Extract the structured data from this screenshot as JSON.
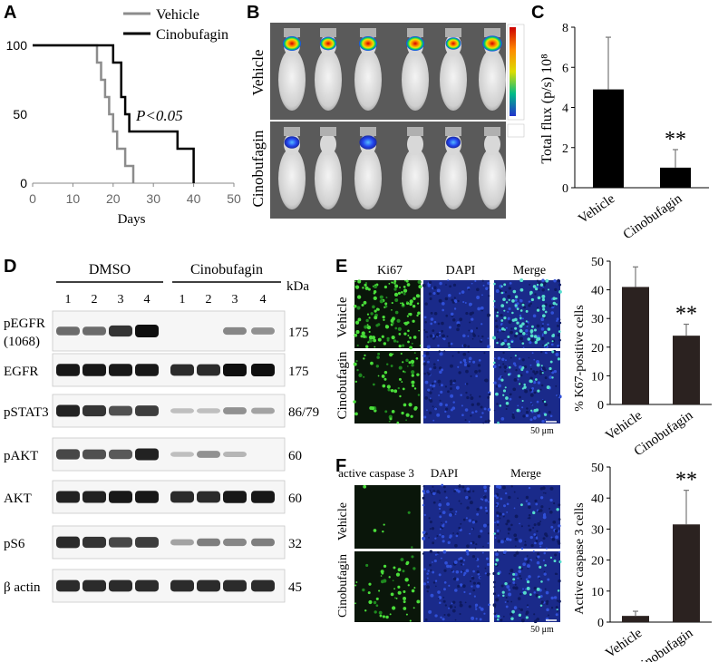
{
  "panels": {
    "a": "A",
    "b": "B",
    "c": "C",
    "d": "D",
    "e": "E",
    "f": "F"
  },
  "chart_data": [
    {
      "panel": "A",
      "type": "line",
      "subtype": "kaplan-meier step",
      "xlabel": "Days",
      "ylabel": "",
      "xlim": [
        0,
        50
      ],
      "ylim": [
        0,
        100
      ],
      "xticks": [
        "0",
        "10",
        "20",
        "30",
        "40",
        "50"
      ],
      "yticks": [
        "0",
        "50",
        "100"
      ],
      "legend_position": "top-right",
      "annotation": "P<0.05",
      "series": [
        {
          "name": "Vehicle",
          "color": "#8c8c8c",
          "points": [
            [
              0,
              100
            ],
            [
              16,
              100
            ],
            [
              16,
              87.5
            ],
            [
              17,
              87.5
            ],
            [
              17,
              75
            ],
            [
              18,
              75
            ],
            [
              18,
              62.5
            ],
            [
              19,
              62.5
            ],
            [
              19,
              50
            ],
            [
              20,
              50
            ],
            [
              20,
              37.5
            ],
            [
              21,
              37.5
            ],
            [
              21,
              25
            ],
            [
              23,
              25
            ],
            [
              23,
              12.5
            ],
            [
              25,
              12.5
            ],
            [
              25,
              0
            ]
          ]
        },
        {
          "name": "Cinobufagin",
          "color": "#000000",
          "points": [
            [
              0,
              100
            ],
            [
              20,
              100
            ],
            [
              20,
              87.5
            ],
            [
              22,
              87.5
            ],
            [
              22,
              62.5
            ],
            [
              23,
              62.5
            ],
            [
              23,
              50
            ],
            [
              24,
              50
            ],
            [
              24,
              37.5
            ],
            [
              36,
              37.5
            ],
            [
              36,
              25
            ],
            [
              40,
              25
            ],
            [
              40,
              0
            ]
          ]
        }
      ]
    },
    {
      "panel": "C",
      "type": "bar",
      "categories": [
        "Vehicle",
        "Cinobufagin"
      ],
      "values": [
        4.9,
        1.0
      ],
      "errors": [
        2.6,
        0.9
      ],
      "ylabel": "Total flux (p/s) 10⁸",
      "ylim": [
        0,
        8
      ],
      "yticks": [
        "0",
        "2",
        "4",
        "6",
        "8"
      ],
      "significance": [
        "",
        "**"
      ],
      "bar_color": "#000000"
    },
    {
      "panel": "E",
      "type": "bar",
      "categories": [
        "Vehicle",
        "Cinobufagin"
      ],
      "values": [
        41,
        24
      ],
      "errors": [
        7,
        4
      ],
      "ylabel": "% K67-positive cells",
      "ylim": [
        0,
        50
      ],
      "yticks": [
        "0",
        "10",
        "20",
        "30",
        "40",
        "50"
      ],
      "significance": [
        "",
        "**"
      ],
      "bar_color": "#2b2220"
    },
    {
      "panel": "F",
      "type": "bar",
      "categories": [
        "Vehicle",
        "Cinobufagin"
      ],
      "values": [
        2,
        31.5
      ],
      "errors": [
        1.5,
        11
      ],
      "ylabel": "Active caspase 3 cells",
      "ylim": [
        0,
        50
      ],
      "yticks": [
        "0",
        "10",
        "20",
        "30",
        "40",
        "50"
      ],
      "significance": [
        "",
        "**"
      ],
      "bar_color": "#2b2220"
    }
  ],
  "imaging": {
    "row_labels": [
      "Vehicle",
      "Cinobufagin"
    ]
  },
  "western": {
    "group_labels": [
      "DMSO",
      "Cinobufagin"
    ],
    "lanes": [
      "1",
      "2",
      "3",
      "4",
      "1",
      "2",
      "3",
      "4"
    ],
    "kda_label": "kDa",
    "rows": [
      {
        "label": "pEGFR\n(1068)",
        "kda": "175",
        "intensity": [
          0.5,
          0.5,
          0.8,
          1.0,
          0.0,
          0.0,
          0.35,
          0.3
        ]
      },
      {
        "label": "EGFR",
        "kda": "175",
        "intensity": [
          0.95,
          0.95,
          0.95,
          0.95,
          0.85,
          0.85,
          1.0,
          1.0
        ]
      },
      {
        "label": "pSTAT3",
        "kda": "86/79",
        "intensity": [
          0.9,
          0.8,
          0.65,
          0.75,
          0.05,
          0.05,
          0.3,
          0.2
        ]
      },
      {
        "label": "pAKT",
        "kda": "60",
        "intensity": [
          0.7,
          0.65,
          0.6,
          0.9,
          0.05,
          0.3,
          0.1,
          0.0
        ]
      },
      {
        "label": "AKT",
        "kda": "60",
        "intensity": [
          0.9,
          0.9,
          0.95,
          0.95,
          0.85,
          0.85,
          0.95,
          0.95
        ]
      },
      {
        "label": "pS6",
        "kda": "32",
        "intensity": [
          0.85,
          0.8,
          0.7,
          0.75,
          0.2,
          0.4,
          0.35,
          0.4
        ]
      },
      {
        "label": "β actin",
        "kda": "45",
        "intensity": [
          0.85,
          0.85,
          0.85,
          0.85,
          0.85,
          0.85,
          0.85,
          0.85
        ]
      }
    ]
  },
  "microscopy_e": {
    "column_labels": [
      "Ki67",
      "DAPI",
      "Merge"
    ],
    "row_labels": [
      "Vehicle",
      "Cinobufagin"
    ],
    "scale_bar": "50 μm"
  },
  "microscopy_f": {
    "column_labels": [
      "active caspase 3",
      "DAPI",
      "Merge"
    ],
    "row_labels": [
      "Vehicle",
      "Cinobufagin"
    ],
    "scale_bar": "50 μm"
  }
}
